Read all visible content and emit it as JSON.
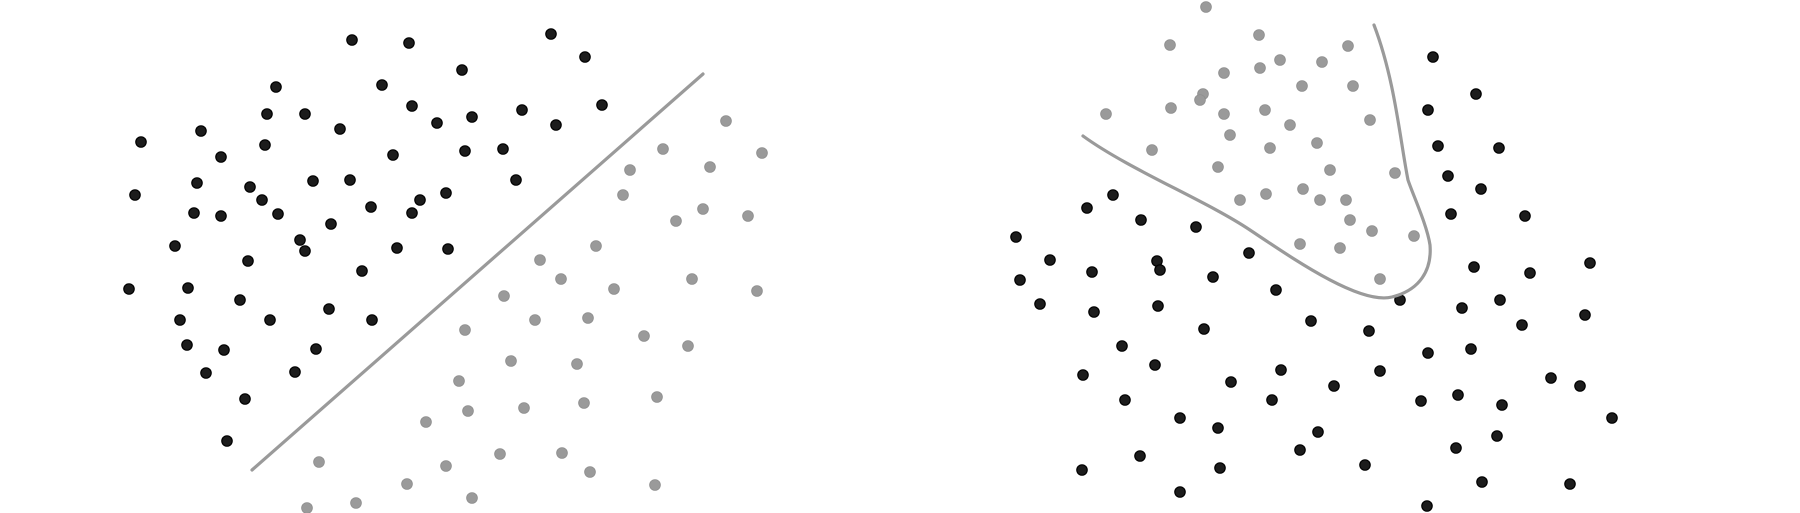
{
  "colors": {
    "class_a": "#1c1c1c",
    "class_b": "#9a9a9a",
    "boundary": "#9a9a9a",
    "background": "#ffffff"
  },
  "panels": [
    {
      "name": "linear-separable-panel",
      "boundary_shape": "straight-line",
      "class_a_count": 59,
      "class_b_count": 39
    },
    {
      "name": "nonlinear-separable-panel",
      "boundary_shape": "curve",
      "class_a_count": 67,
      "class_b_count": 36
    }
  ]
}
